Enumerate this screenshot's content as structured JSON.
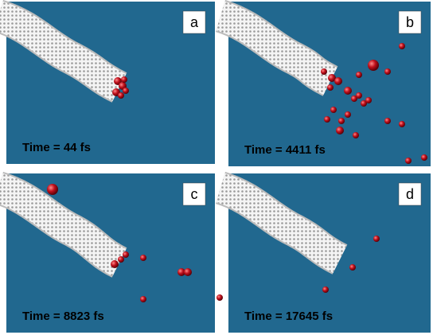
{
  "panels": [
    {
      "label": "a",
      "caption": "Time = 44 fs"
    },
    {
      "label": "b",
      "caption": "Time = 4411 fs"
    },
    {
      "label": "c",
      "caption": "Time = 8823 fs"
    },
    {
      "label": "d",
      "caption": "Time = 17645 fs"
    }
  ]
}
